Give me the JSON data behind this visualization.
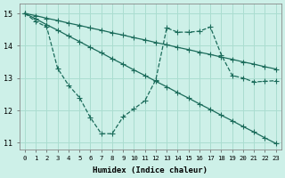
{
  "xlabel": "Humidex (Indice chaleur)",
  "xlim": [
    -0.5,
    23.5
  ],
  "ylim": [
    10.8,
    15.3
  ],
  "xticks": [
    0,
    1,
    2,
    3,
    4,
    5,
    6,
    7,
    8,
    9,
    10,
    11,
    12,
    13,
    14,
    15,
    16,
    17,
    18,
    19,
    20,
    21,
    22,
    23
  ],
  "yticks": [
    11,
    12,
    13,
    14,
    15
  ],
  "bg_color": "#cdf0e8",
  "grid_color": "#aaddd0",
  "line_color": "#1a6b5a",
  "line1_y": [
    15.0,
    14.83,
    14.65,
    14.48,
    14.3,
    14.13,
    13.95,
    13.78,
    13.6,
    13.43,
    13.25,
    13.08,
    12.9,
    12.73,
    12.55,
    12.38,
    12.2,
    12.03,
    11.85,
    11.68,
    11.5,
    11.33,
    11.15,
    10.98
  ],
  "line2_y": [
    15.0,
    14.93,
    14.85,
    14.78,
    14.7,
    14.63,
    14.55,
    14.48,
    14.4,
    14.33,
    14.25,
    14.18,
    14.1,
    14.03,
    13.95,
    13.88,
    13.8,
    13.73,
    13.65,
    13.58,
    13.5,
    13.43,
    13.35,
    13.28
  ],
  "line3_y": [
    15.0,
    14.75,
    14.58,
    13.3,
    12.78,
    12.4,
    11.78,
    11.28,
    11.28,
    11.8,
    12.05,
    12.3,
    12.95,
    14.55,
    14.42,
    14.42,
    14.45,
    14.58,
    13.72,
    13.08,
    13.0,
    12.88,
    12.9,
    12.92
  ]
}
